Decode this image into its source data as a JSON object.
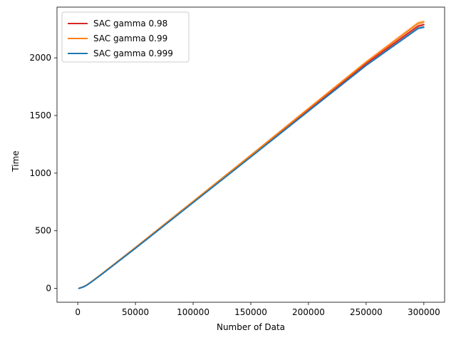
{
  "chart_data": {
    "type": "line",
    "title": "",
    "xlabel": "Number of Data",
    "ylabel": "Time",
    "xlim": [
      -18000,
      318000
    ],
    "ylim": [
      -120,
      2440
    ],
    "xticks": [
      0,
      50000,
      100000,
      150000,
      200000,
      250000,
      300000
    ],
    "xtick_labels": [
      "0",
      "50000",
      "100000",
      "150000",
      "200000",
      "250000",
      "300000"
    ],
    "yticks": [
      0,
      500,
      1000,
      1500,
      2000
    ],
    "ytick_labels": [
      "0",
      "500",
      "1000",
      "1500",
      "2000"
    ],
    "grid": false,
    "legend_position": "top-left",
    "series": [
      {
        "name": "SAC gamma 0.98",
        "color": "#d62728",
        "band_alpha": 0.3,
        "x": [
          1000,
          5000,
          8000,
          12000,
          20000,
          50000,
          100000,
          150000,
          200000,
          250000,
          295000,
          300000
        ],
        "y": [
          0,
          14,
          30,
          58,
          118,
          352,
          750,
          1148,
          1552,
          1950,
          2275,
          2288
        ],
        "y_low": [
          0,
          12,
          27,
          55,
          114,
          348,
          746,
          1142,
          1544,
          1940,
          2262,
          2276
        ],
        "y_high": [
          0,
          16,
          33,
          61,
          122,
          356,
          754,
          1154,
          1560,
          1960,
          2288,
          2300
        ]
      },
      {
        "name": "SAC gamma 0.99",
        "color": "#ff7f0e",
        "band_alpha": 0.3,
        "x": [
          1000,
          5000,
          8000,
          12000,
          20000,
          50000,
          100000,
          150000,
          200000,
          250000,
          295000,
          300000
        ],
        "y": [
          0,
          15,
          31,
          60,
          120,
          355,
          755,
          1155,
          1560,
          1963,
          2300,
          2312
        ],
        "y_low": [
          0,
          13,
          28,
          56,
          116,
          350,
          749,
          1147,
          1550,
          1950,
          2283,
          2296
        ],
        "y_high": [
          0,
          17,
          34,
          64,
          124,
          360,
          761,
          1163,
          1570,
          1976,
          2317,
          2328
        ]
      },
      {
        "name": "SAC gamma 0.999",
        "color": "#1f77b4",
        "band_alpha": 0.3,
        "x": [
          1000,
          5000,
          8000,
          12000,
          20000,
          50000,
          100000,
          150000,
          200000,
          250000,
          295000,
          300000
        ],
        "y": [
          0,
          13,
          29,
          57,
          116,
          348,
          744,
          1140,
          1538,
          1935,
          2256,
          2266
        ],
        "y_low": [
          0,
          11,
          26,
          54,
          112,
          344,
          740,
          1134,
          1530,
          1926,
          2244,
          2255
        ],
        "y_high": [
          0,
          15,
          32,
          60,
          120,
          352,
          748,
          1146,
          1546,
          1944,
          2268,
          2277
        ]
      }
    ]
  }
}
